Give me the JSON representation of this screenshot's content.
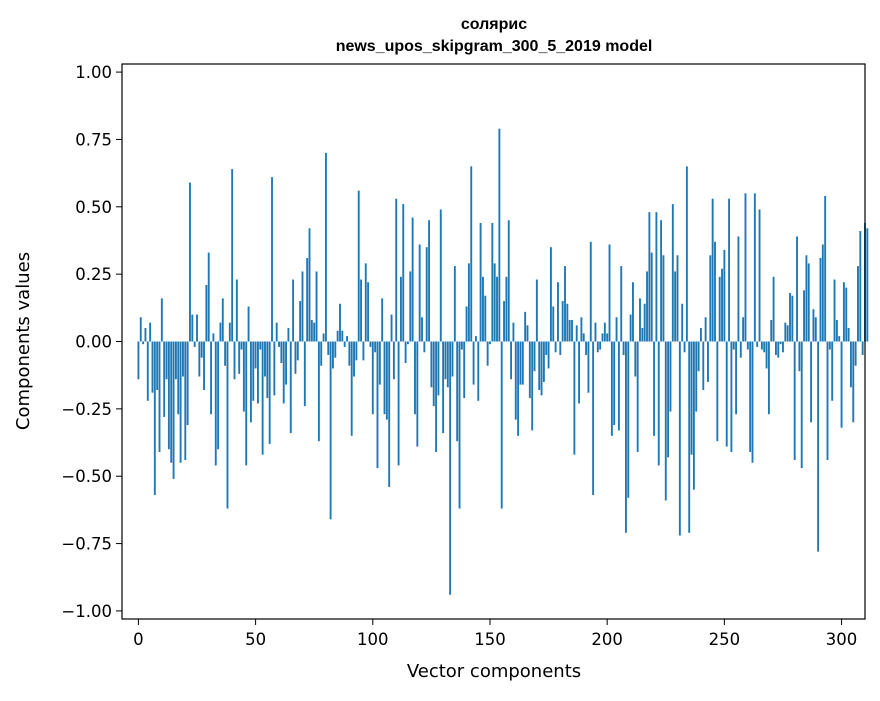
{
  "chart_data": {
    "type": "bar",
    "title": "солярис",
    "subtitle": "news_upos_skipgram_300_5_2019 model",
    "xlabel": "Vector components",
    "ylabel": "Components values",
    "xlim": [
      -7,
      310
    ],
    "ylim": [
      -1.03,
      1.03
    ],
    "x_ticks": [
      0,
      50,
      100,
      150,
      200,
      250,
      300
    ],
    "x_tick_labels": [
      "0",
      "50",
      "100",
      "150",
      "200",
      "250",
      "300"
    ],
    "y_ticks": [
      1.0,
      0.75,
      0.5,
      0.25,
      0.0,
      -0.25,
      -0.5,
      -0.75,
      -1.0
    ],
    "y_tick_labels": [
      "1.00",
      "0.75",
      "0.50",
      "0.25",
      "0.00",
      "−0.25",
      "−0.50",
      "−0.75",
      "−1.00"
    ],
    "bar_color": "#1f77b4",
    "grid": false,
    "series": [
      {
        "name": "солярис",
        "x_start": 0,
        "values": [
          -0.14,
          0.09,
          -0.01,
          0.05,
          -0.22,
          0.07,
          -0.19,
          -0.57,
          -0.18,
          -0.41,
          0.16,
          -0.28,
          -0.14,
          -0.4,
          -0.45,
          -0.51,
          -0.14,
          -0.27,
          -0.45,
          -0.13,
          -0.44,
          -0.31,
          0.59,
          0.1,
          -0.02,
          0.1,
          -0.13,
          -0.06,
          -0.18,
          0.21,
          0.33,
          -0.27,
          0.03,
          -0.46,
          -0.4,
          0.07,
          0.16,
          -0.09,
          -0.62,
          0.07,
          0.64,
          -0.14,
          0.23,
          -0.12,
          -0.03,
          -0.26,
          -0.46,
          0.13,
          -0.3,
          -0.22,
          -0.1,
          -0.23,
          -0.03,
          -0.42,
          -0.13,
          -0.21,
          -0.38,
          0.61,
          -0.2,
          0.07,
          -0.02,
          -0.08,
          -0.23,
          -0.16,
          0.05,
          -0.34,
          0.23,
          -0.12,
          -0.07,
          0.15,
          0.26,
          -0.24,
          0.31,
          0.42,
          0.08,
          0.07,
          0.26,
          -0.37,
          -0.09,
          0.03,
          0.7,
          -0.05,
          -0.66,
          -0.1,
          -0.06,
          0.04,
          0.14,
          0.04,
          -0.02,
          0.02,
          -0.09,
          -0.35,
          -0.13,
          -0.07,
          0.56,
          0.23,
          -0.07,
          0.29,
          0.22,
          -0.02,
          -0.27,
          -0.04,
          -0.47,
          -0.16,
          0.16,
          -0.27,
          -0.29,
          -0.54,
          0.1,
          -0.14,
          0.53,
          -0.46,
          0.24,
          0.51,
          -0.08,
          -0.01,
          0.26,
          0.46,
          -0.27,
          -0.39,
          0.36,
          0.09,
          -0.04,
          0.35,
          0.45,
          -0.17,
          -0.24,
          -0.41,
          -0.2,
          0.49,
          -0.34,
          -0.14,
          -0.17,
          -0.94,
          -0.13,
          0.28,
          -0.37,
          -0.62,
          -0.03,
          -0.21,
          0.13,
          0.29,
          0.65,
          -0.16,
          0.02,
          -0.22,
          0.44,
          0.24,
          0.17,
          -0.09,
          -0.01,
          0.44,
          0.29,
          0.24,
          0.79,
          -0.62,
          0.15,
          0.24,
          0.45,
          -0.14,
          0.07,
          -0.29,
          -0.35,
          -0.16,
          -0.16,
          0.11,
          0.06,
          -0.21,
          -0.33,
          -0.11,
          0.23,
          -0.18,
          -0.2,
          -0.15,
          -0.05,
          -0.1,
          0.35,
          0.13,
          -0.04,
          0.22,
          -0.05,
          0.15,
          0.28,
          0.14,
          0.08,
          0.08,
          -0.42,
          0.06,
          -0.23,
          0.09,
          0.03,
          -0.05,
          -0.19,
          0.37,
          -0.57,
          0.07,
          -0.04,
          -0.03,
          0.03,
          0.07,
          0.03,
          0.36,
          -0.35,
          -0.31,
          0.09,
          -0.33,
          0.28,
          -0.05,
          -0.71,
          -0.58,
          0.1,
          0.22,
          -0.13,
          -0.41,
          0.16,
          0.05,
          0.14,
          0.26,
          0.48,
          0.33,
          -0.35,
          0.48,
          -0.46,
          0.45,
          0.32,
          -0.59,
          -0.43,
          -0.26,
          0.51,
          0.26,
          0.32,
          -0.72,
          0.14,
          -0.04,
          0.65,
          -0.71,
          -0.42,
          -0.55,
          -0.26,
          -0.11,
          0.05,
          -0.18,
          0.09,
          -0.15,
          0.32,
          0.53,
          0.37,
          -0.37,
          0.24,
          0.27,
          0.34,
          -0.39,
          0.53,
          -0.41,
          -0.03,
          -0.27,
          0.39,
          -0.06,
          0.09,
          0.55,
          -0.03,
          -0.41,
          -0.45,
          0.55,
          -0.02,
          0.49,
          -0.03,
          -0.04,
          -0.1,
          -0.27,
          0.08,
          0.24,
          -0.05,
          -0.06,
          -0.01,
          -0.04,
          0.07,
          0.06,
          0.18,
          0.17,
          -0.44,
          0.39,
          -0.11,
          -0.47,
          0.19,
          0.32,
          0.29,
          -0.3,
          0.12,
          0.09,
          -0.78,
          0.31,
          0.36,
          0.54,
          -0.44,
          -0.03,
          -0.22,
          0.23,
          0.08,
          0.02,
          -0.32,
          0.22,
          0.2,
          0.05,
          -0.17,
          -0.3,
          -0.09,
          0.28,
          0.41,
          -0.05,
          0.44,
          0.42
        ]
      }
    ]
  }
}
